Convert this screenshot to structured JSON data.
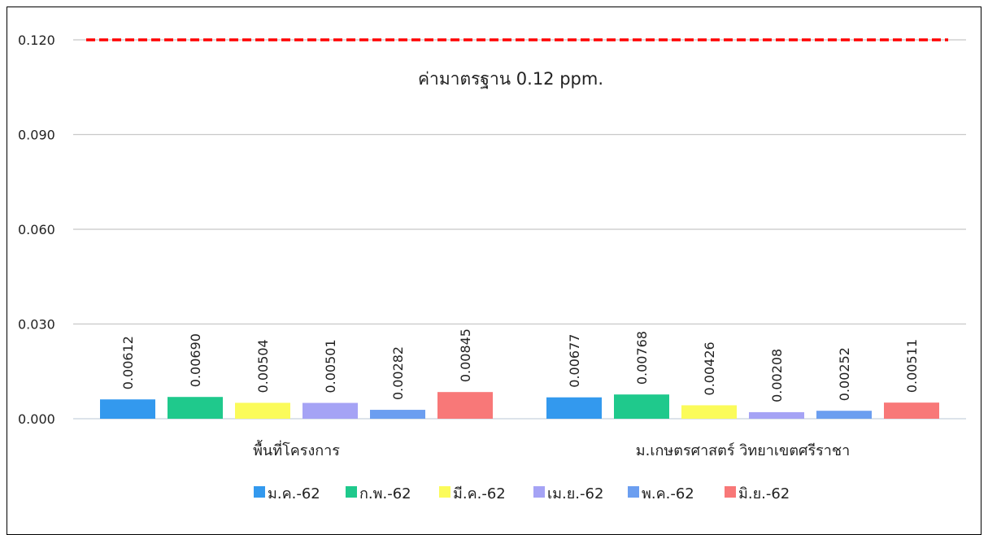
{
  "chart_data": {
    "type": "bar",
    "categories": [
      "พื้นที่โครงการ",
      "ม.เกษตรศาสตร์ วิทยาเขตศรีราชา"
    ],
    "series": [
      {
        "name": "ม.ค.-62",
        "values": [
          0.00612,
          0.00677
        ],
        "color": "#3399ee",
        "labels": [
          "0.00612",
          "0.00677"
        ]
      },
      {
        "name": "ก.พ.-62",
        "values": [
          0.0069,
          0.00768
        ],
        "color": "#1fc98c",
        "labels": [
          "0.00690",
          "0.00768"
        ]
      },
      {
        "name": "มี.ค.-62",
        "values": [
          0.00504,
          0.00426
        ],
        "color": "#fbfb5a",
        "labels": [
          "0.00504",
          "0.00426"
        ]
      },
      {
        "name": "เม.ย.-62",
        "values": [
          0.00501,
          0.00208
        ],
        "color": "#a5a3f5",
        "labels": [
          "0.00501",
          "0.00208"
        ]
      },
      {
        "name": "พ.ค.-62",
        "values": [
          0.00282,
          0.00252
        ],
        "color": "#6b9ef0",
        "labels": [
          "0.00282",
          "0.00252"
        ]
      },
      {
        "name": "มิ.ย.-62",
        "values": [
          0.00845,
          0.00511
        ],
        "color": "#f87878",
        "labels": [
          "0.00845",
          "0.00511"
        ]
      }
    ],
    "yticks": [
      "0.000",
      "0.030",
      "0.060",
      "0.090",
      "0.120"
    ],
    "ylim": [
      0,
      0.12
    ],
    "reference_line": {
      "value": 0.12,
      "label": "ค่ามาตรฐาน 0.12 ppm.",
      "color": "#ff0000"
    },
    "grid": true,
    "legend_position": "bottom",
    "title": "",
    "xlabel": "",
    "ylabel": ""
  }
}
